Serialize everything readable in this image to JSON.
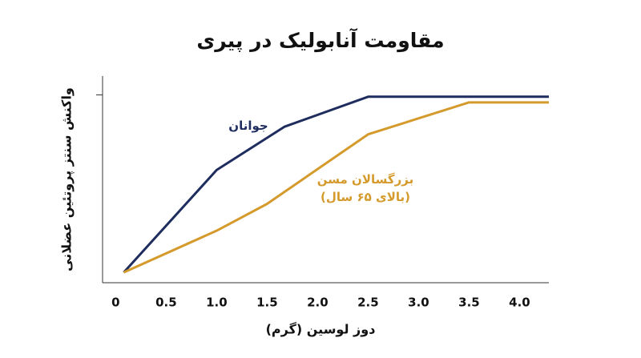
{
  "chart_data": {
    "type": "line",
    "title": "مقاومت آنابولیک در پیری",
    "y_label": "واکنش سنتز پروتئین عضلانی",
    "x_label": "دوز لوسین (گرم)",
    "xlim": [
      -0.13,
      4.29
    ],
    "ylim": [
      0,
      110
    ],
    "xticks": [
      0,
      0.5,
      {
        "value": 1,
        "label": "1.0"
      },
      1.5,
      {
        "value": 2,
        "label": "2.0"
      },
      2.5,
      {
        "value": 3,
        "label": "3.0"
      },
      3.5,
      {
        "value": 4,
        "label": "4.0"
      }
    ],
    "yticks": [
      100
    ],
    "series": [
      {
        "name": "جوانان",
        "color": "#1e2c5e",
        "x": [
          0.08,
          1.0,
          1.67,
          2.5,
          4.29
        ],
        "values": [
          5.5,
          60,
          83,
          99,
          99
        ]
      },
      {
        "name": "بزرگسالان مسن (بالای ۶۵ سال)",
        "color": "#d59a2c",
        "x": [
          0.08,
          1.0,
          1.5,
          2.5,
          3.5,
          4.29
        ],
        "values": [
          5.5,
          27.7,
          42,
          79,
          96,
          96
        ]
      }
    ]
  }
}
